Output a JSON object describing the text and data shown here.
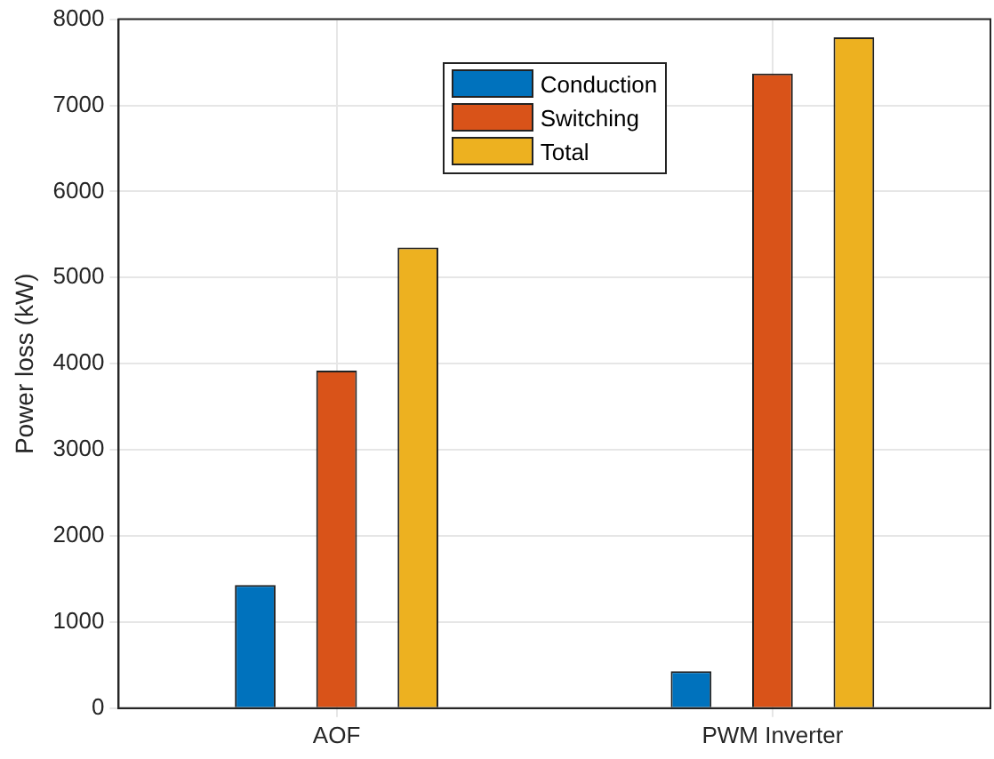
{
  "chart_data": {
    "type": "bar",
    "ylabel": "Power loss (kW)",
    "categories": [
      "AOF",
      "PWM Inverter"
    ],
    "series": [
      {
        "name": "Conduction",
        "color": "#0072bd",
        "values": [
          1430,
          430
        ]
      },
      {
        "name": "Switching",
        "color": "#d95319",
        "values": [
          3920,
          7370
        ]
      },
      {
        "name": "Total",
        "color": "#edb120",
        "values": [
          5350,
          7790
        ]
      }
    ],
    "ylim": [
      0,
      8000
    ],
    "yticks": [
      0,
      1000,
      2000,
      3000,
      4000,
      5000,
      6000,
      7000,
      8000
    ],
    "grid": true,
    "legend": "top"
  }
}
